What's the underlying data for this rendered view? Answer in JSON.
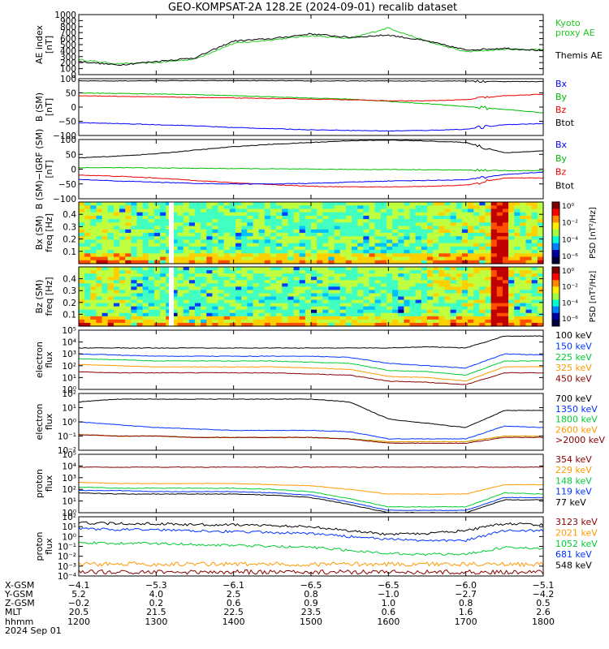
{
  "title": "GEO-KOMPSAT-2A 128.2E (2024-09-01) recalib dataset",
  "panels": [
    {
      "id": "ae",
      "ylabel": [
        "AE index",
        "[nT]"
      ],
      "ylim": [
        0,
        1000
      ],
      "log": false,
      "ticks": [
        {
          "v": 0,
          "l": "0"
        },
        {
          "v": 100,
          "l": "100"
        },
        {
          "v": 200,
          "l": "200"
        },
        {
          "v": 300,
          "l": "300"
        },
        {
          "v": 400,
          "l": "400"
        },
        {
          "v": 500,
          "l": "500"
        },
        {
          "v": 600,
          "l": "600"
        },
        {
          "v": 700,
          "l": "700"
        },
        {
          "v": 800,
          "l": "800"
        },
        {
          "v": 900,
          "l": "900"
        },
        {
          "v": 1000,
          "l": "1000"
        }
      ],
      "legend": [
        {
          "label": "Kyoto",
          "color": "#22c922"
        },
        {
          "label": "proxy AE",
          "color": "#22c922"
        },
        {
          "label": "Themis AE",
          "color": "#000000"
        }
      ]
    },
    {
      "id": "bsm",
      "ylabel": [
        "B (SM)",
        "[nT]"
      ],
      "ylim": [
        -100,
        100
      ],
      "log": false,
      "ticks": [
        {
          "v": -100,
          "l": "−100"
        },
        {
          "v": -50,
          "l": "−50"
        },
        {
          "v": 0,
          "l": "0"
        },
        {
          "v": 50,
          "l": "50"
        },
        {
          "v": 100,
          "l": "100"
        }
      ],
      "legend": [
        {
          "label": "Bx",
          "color": "#0000ff"
        },
        {
          "label": "By",
          "color": "#00bb00"
        },
        {
          "label": "Bz",
          "color": "#ee0000"
        },
        {
          "label": "Btot",
          "color": "#000000"
        }
      ]
    },
    {
      "id": "bigrf",
      "ylabel": [
        "B (SM)−IGRF (SM)",
        "[nT]"
      ],
      "ylim": [
        -100,
        100
      ],
      "log": false,
      "ticks": [
        {
          "v": -100,
          "l": "−100"
        },
        {
          "v": -50,
          "l": "−50"
        },
        {
          "v": 0,
          "l": "0"
        },
        {
          "v": 50,
          "l": "50"
        },
        {
          "v": 100,
          "l": "100"
        }
      ],
      "legend": [
        {
          "label": "Bx",
          "color": "#0000ff"
        },
        {
          "label": "By",
          "color": "#00bb00"
        },
        {
          "label": "Bz",
          "color": "#ee0000"
        },
        {
          "label": "Btot",
          "color": "#000000"
        }
      ]
    },
    {
      "id": "bxspec",
      "ylabel": [
        "Bx (SM)",
        "freq [Hz]"
      ],
      "ylim": [
        0,
        0.5
      ],
      "log": false,
      "ticks": [
        {
          "v": 0.1,
          "l": "0.1"
        },
        {
          "v": 0.2,
          "l": "0.2"
        },
        {
          "v": 0.3,
          "l": "0.3"
        },
        {
          "v": 0.4,
          "l": "0.4"
        }
      ],
      "colorbar": {
        "label": "PSD [nT²/Hz]",
        "ticks": [
          "10⁰",
          "10⁻²",
          "10⁻⁴",
          "10⁻⁶"
        ]
      }
    },
    {
      "id": "bzspec",
      "ylabel": [
        "Bz (SM)",
        "freq [Hz]"
      ],
      "ylim": [
        0,
        0.5
      ],
      "log": false,
      "ticks": [
        {
          "v": 0.1,
          "l": "0.1"
        },
        {
          "v": 0.2,
          "l": "0.2"
        },
        {
          "v": 0.3,
          "l": "0.3"
        },
        {
          "v": 0.4,
          "l": "0.4"
        }
      ],
      "colorbar": {
        "label": "PSD [nT²/Hz]",
        "ticks": [
          "10⁰",
          "10⁻²",
          "10⁻⁴",
          "10⁻⁶"
        ]
      }
    },
    {
      "id": "ele1",
      "ylabel": [
        "electron",
        "flux"
      ],
      "ylim": [
        0,
        5
      ],
      "log": true,
      "ticks": [
        {
          "v": 0,
          "l": "10⁰"
        },
        {
          "v": 1,
          "l": "10¹"
        },
        {
          "v": 2,
          "l": "10²"
        },
        {
          "v": 3,
          "l": "10³"
        },
        {
          "v": 4,
          "l": "10⁴"
        },
        {
          "v": 5,
          "l": "10⁵"
        }
      ],
      "legend": [
        {
          "label": "100 keV",
          "color": "#000000"
        },
        {
          "label": "150 keV",
          "color": "#0033ff"
        },
        {
          "label": "225 keV",
          "color": "#00cc33"
        },
        {
          "label": "325 keV",
          "color": "#ff9900"
        },
        {
          "label": "450 keV",
          "color": "#880000"
        }
      ]
    },
    {
      "id": "ele2",
      "ylabel": [
        "electron",
        "flux"
      ],
      "ylim": [
        -2,
        2
      ],
      "log": true,
      "ticks": [
        {
          "v": -2,
          "l": "10⁻²"
        },
        {
          "v": -1,
          "l": "10⁻¹"
        },
        {
          "v": 0,
          "l": "10⁰"
        },
        {
          "v": 1,
          "l": "10¹"
        },
        {
          "v": 2,
          "l": "10²"
        }
      ],
      "legend": [
        {
          "label": "700 keV",
          "color": "#000000"
        },
        {
          "label": "1350 keV",
          "color": "#0033ff"
        },
        {
          "label": "1800 keV",
          "color": "#00cc33"
        },
        {
          "label": "2600 keV",
          "color": "#ff9900"
        },
        {
          "label": ">2000 keV",
          "color": "#880000"
        }
      ]
    },
    {
      "id": "pro1",
      "ylabel": [
        "proton",
        "flux"
      ],
      "ylim": [
        0,
        5
      ],
      "log": true,
      "ticks": [
        {
          "v": 0,
          "l": "10⁰"
        },
        {
          "v": 1,
          "l": "10¹"
        },
        {
          "v": 2,
          "l": "10²"
        },
        {
          "v": 3,
          "l": "10³"
        },
        {
          "v": 4,
          "l": "10⁴"
        },
        {
          "v": 5,
          "l": "10⁵"
        }
      ],
      "legend": [
        {
          "label": "354 keV",
          "color": "#880000"
        },
        {
          "label": "229 keV",
          "color": "#ff9900"
        },
        {
          "label": "148 keV",
          "color": "#00cc33"
        },
        {
          "label": "119 keV",
          "color": "#0033ff"
        },
        {
          "label": "77 keV",
          "color": "#000000"
        }
      ]
    },
    {
      "id": "pro2",
      "ylabel": [
        "proton",
        "flux"
      ],
      "ylim": [
        -4,
        2
      ],
      "log": true,
      "ticks": [
        {
          "v": -4,
          "l": "10⁻⁴"
        },
        {
          "v": -3,
          "l": "10⁻³"
        },
        {
          "v": -2,
          "l": "10⁻²"
        },
        {
          "v": -1,
          "l": "10⁻¹"
        },
        {
          "v": 0,
          "l": "10⁰"
        },
        {
          "v": 1,
          "l": "10¹"
        },
        {
          "v": 2,
          "l": "10²"
        }
      ],
      "legend": [
        {
          "label": "3123 keV",
          "color": "#880000"
        },
        {
          "label": "2021 keV",
          "color": "#ff9900"
        },
        {
          "label": "1052 keV",
          "color": "#00cc33"
        },
        {
          "label": "681 keV",
          "color": "#0033ff"
        },
        {
          "label": "548 keV",
          "color": "#000000"
        }
      ]
    }
  ],
  "footer": {
    "rows": [
      {
        "label": "X-GSM",
        "values": [
          "−4.1",
          "−5.3",
          "−6.1",
          "−6.5",
          "−6.5",
          "−6.0",
          "−5.1"
        ]
      },
      {
        "label": "Y-GSM",
        "values": [
          "5.2",
          "4.0",
          "2.5",
          "0.8",
          "−1.0",
          "−2.7",
          "−4.2"
        ]
      },
      {
        "label": "Z-GSM",
        "values": [
          "−0.2",
          "0.2",
          "0.6",
          "0.9",
          "1.0",
          "0.8",
          "0.5"
        ]
      },
      {
        "label": "MLT",
        "values": [
          "20.5",
          "21.5",
          "22.5",
          "23.5",
          "0.6",
          "1.6",
          "2.6"
        ]
      },
      {
        "label": "hhmm",
        "values": [
          "1200",
          "1300",
          "1400",
          "1500",
          "1600",
          "1700",
          "1800"
        ]
      }
    ],
    "date": "2024 Sep 01"
  },
  "chart_data": {
    "type": "line",
    "x_unit": "hhmm UT",
    "x": [
      "1200",
      "1230",
      "1300",
      "1330",
      "1400",
      "1430",
      "1500",
      "1530",
      "1600",
      "1630",
      "1700",
      "1730",
      "1800"
    ],
    "ae": {
      "series": [
        {
          "name": "Kyoto proxy AE",
          "values": [
            250,
            180,
            200,
            260,
            520,
            580,
            650,
            600,
            780,
            550,
            380,
            420,
            420
          ]
        },
        {
          "name": "Themis AE",
          "values": [
            220,
            160,
            220,
            280,
            560,
            600,
            680,
            620,
            660,
            560,
            410,
            440,
            400
          ]
        }
      ]
    },
    "b_sm": {
      "series": [
        {
          "name": "Btot",
          "values": [
            92,
            92,
            93,
            93,
            93,
            93,
            92,
            92,
            92,
            92,
            92,
            90,
            90
          ]
        },
        {
          "name": "By",
          "values": [
            50,
            48,
            46,
            44,
            40,
            36,
            32,
            28,
            20,
            12,
            2,
            -8,
            -20
          ]
        },
        {
          "name": "Bz",
          "values": [
            40,
            38,
            36,
            34,
            32,
            30,
            28,
            26,
            22,
            22,
            26,
            40,
            45
          ]
        },
        {
          "name": "Bx",
          "values": [
            -55,
            -58,
            -62,
            -66,
            -72,
            -76,
            -80,
            -82,
            -84,
            -82,
            -78,
            -62,
            -58
          ]
        }
      ]
    },
    "b_igrf": {
      "series": [
        {
          "name": "Btot",
          "values": [
            38,
            44,
            52,
            64,
            76,
            84,
            90,
            96,
            98,
            95,
            90,
            55,
            62
          ]
        },
        {
          "name": "By",
          "values": [
            5,
            5,
            4,
            3,
            2,
            1,
            0,
            -1,
            -1,
            -2,
            -3,
            -5,
            -5
          ]
        },
        {
          "name": "Bz",
          "values": [
            -20,
            -24,
            -30,
            -38,
            -46,
            -52,
            -58,
            -60,
            -60,
            -58,
            -54,
            -30,
            -30
          ]
        },
        {
          "name": "Bx",
          "values": [
            -35,
            -40,
            -44,
            -48,
            -50,
            -50,
            -48,
            -44,
            -40,
            -38,
            -36,
            -18,
            -10
          ]
        }
      ]
    },
    "electron_low": {
      "series": [
        {
          "name": "100 keV",
          "values": [
            3.5,
            3.5,
            3.5,
            3.5,
            3.5,
            3.5,
            3.5,
            3.5,
            3.5,
            3.6,
            3.5,
            4.5,
            4.5
          ]
        },
        {
          "name": "150 keV",
          "values": [
            3.0,
            2.9,
            2.8,
            2.8,
            2.8,
            2.8,
            2.8,
            2.7,
            2.2,
            2.0,
            1.8,
            3.0,
            2.9
          ]
        },
        {
          "name": "225 keV",
          "values": [
            2.6,
            2.5,
            2.4,
            2.4,
            2.4,
            2.4,
            2.3,
            2.2,
            1.6,
            1.5,
            1.2,
            2.4,
            2.4
          ]
        },
        {
          "name": "325 keV",
          "values": [
            2.1,
            2.0,
            1.9,
            1.9,
            1.9,
            1.9,
            1.8,
            1.7,
            1.1,
            1.0,
            0.7,
            1.9,
            1.9
          ]
        },
        {
          "name": "450 keV",
          "values": [
            1.5,
            1.4,
            1.4,
            1.4,
            1.4,
            1.4,
            1.3,
            1.2,
            0.7,
            0.6,
            0.4,
            1.4,
            1.4
          ]
        }
      ]
    },
    "electron_high": {
      "series": [
        {
          "name": "700 keV",
          "values": [
            1.4,
            1.6,
            1.6,
            1.6,
            1.6,
            1.6,
            1.6,
            1.4,
            0.2,
            -0.1,
            -0.4,
            0.8,
            0.8
          ]
        },
        {
          "name": "1350 keV",
          "values": [
            0,
            -0.2,
            -0.4,
            -0.5,
            -0.6,
            -0.6,
            -0.6,
            -0.7,
            -1.2,
            -1.2,
            -1.2,
            -0.3,
            -0.4
          ]
        },
        {
          "name": "1800 keV",
          "values": [
            -0.9,
            -1.0,
            -1.0,
            -1.1,
            -1.1,
            -1.1,
            -1.1,
            -1.2,
            -1.4,
            -1.4,
            -1.4,
            -1.0,
            -1.0
          ]
        },
        {
          "name": "2600 keV",
          "values": [
            -0.9,
            -1.0,
            -1.0,
            -1.1,
            -1.1,
            -1.1,
            -1.1,
            -1.2,
            -1.4,
            -1.4,
            -1.4,
            -1.0,
            -1.0
          ]
        },
        {
          "name": ">2000 keV",
          "values": [
            -0.9,
            -1.0,
            -1.0,
            -1.1,
            -1.1,
            -1.1,
            -1.1,
            -1.2,
            -1.5,
            -1.5,
            -1.5,
            -1.1,
            -1.1
          ]
        }
      ]
    },
    "proton_low": {
      "series": [
        {
          "name": "354 keV",
          "values": [
            3.9,
            3.9,
            3.9,
            3.9,
            3.9,
            3.9,
            3.9,
            3.9,
            3.9,
            3.9,
            3.9,
            3.9,
            3.9
          ]
        },
        {
          "name": "229 keV",
          "values": [
            2.6,
            2.5,
            2.5,
            2.5,
            2.5,
            2.4,
            2.3,
            2.0,
            1.6,
            1.6,
            1.6,
            2.4,
            2.4
          ]
        },
        {
          "name": "148 keV",
          "values": [
            2.2,
            2.1,
            2.1,
            2.1,
            2.1,
            2.0,
            1.8,
            1.2,
            0.5,
            0.5,
            0.5,
            1.7,
            1.6
          ]
        },
        {
          "name": "119 keV",
          "values": [
            1.9,
            1.9,
            1.8,
            1.8,
            1.8,
            1.7,
            1.5,
            0.9,
            0.2,
            0.2,
            0.2,
            1.3,
            1.3
          ]
        },
        {
          "name": "77 keV",
          "values": [
            1.7,
            1.6,
            1.6,
            1.6,
            1.6,
            1.5,
            1.3,
            0.7,
            0.0,
            0.0,
            0.0,
            1.1,
            1.1
          ]
        }
      ]
    },
    "proton_high": {
      "series": [
        {
          "name": "548 keV",
          "values": [
            1.4,
            1.3,
            1.3,
            1.2,
            1.2,
            1.1,
            1.0,
            0.6,
            0.2,
            0.3,
            0.6,
            1.3,
            1.2
          ]
        },
        {
          "name": "681 keV",
          "values": [
            0.8,
            0.7,
            0.7,
            0.6,
            0.5,
            0.4,
            0.3,
            0.0,
            -0.3,
            -0.4,
            -0.4,
            0.6,
            0.6
          ]
        },
        {
          "name": "1052 keV",
          "values": [
            -0.6,
            -0.7,
            -0.7,
            -0.8,
            -0.9,
            -1.0,
            -1.1,
            -1.4,
            -1.7,
            -1.8,
            -1.8,
            -1.1,
            -1.2
          ]
        },
        {
          "name": "2021 keV",
          "values": [
            -2.8,
            -2.8,
            -2.8,
            -2.8,
            -2.8,
            -2.8,
            -2.8,
            -2.8,
            -2.8,
            -2.8,
            -2.8,
            -2.8,
            -2.8
          ]
        },
        {
          "name": "3123 keV",
          "values": [
            -3.6,
            -3.6,
            -3.6,
            -3.6,
            -3.6,
            -3.6,
            -3.6,
            -3.6,
            -3.6,
            -3.6,
            -3.6,
            -3.6,
            -3.6
          ]
        }
      ]
    }
  }
}
